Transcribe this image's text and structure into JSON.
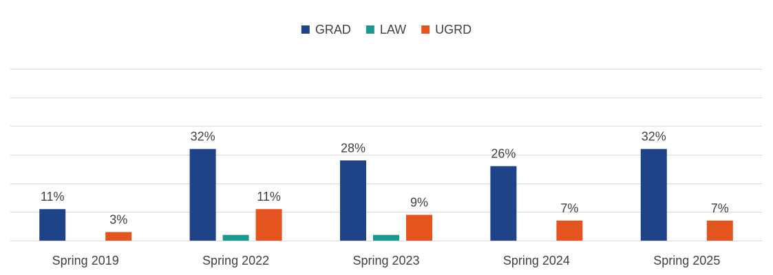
{
  "chart_data": {
    "type": "bar",
    "title": "",
    "xlabel": "",
    "ylabel": "",
    "categories": [
      "Spring 2019",
      "Spring 2022",
      "Spring 2023",
      "Spring 2024",
      "Spring 2025"
    ],
    "series": [
      {
        "name": "GRAD",
        "color": "#1f4388",
        "values": [
          11,
          32,
          28,
          26,
          32
        ],
        "labels": [
          "11%",
          "32%",
          "28%",
          "26%",
          "32%"
        ]
      },
      {
        "name": "LAW",
        "color": "#1a9a8f",
        "values": [
          0,
          2,
          2,
          0,
          0
        ],
        "labels": [
          "",
          "",
          "",
          "",
          ""
        ]
      },
      {
        "name": "UGRD",
        "color": "#e3541f",
        "values": [
          3,
          11,
          9,
          7,
          7
        ],
        "labels": [
          "3%",
          "11%",
          "9%",
          "7%",
          "7%"
        ]
      }
    ],
    "ylim": [
      0,
      60
    ],
    "grid": true,
    "y_axis_labels_shown": false,
    "legend_position": "top-center"
  }
}
